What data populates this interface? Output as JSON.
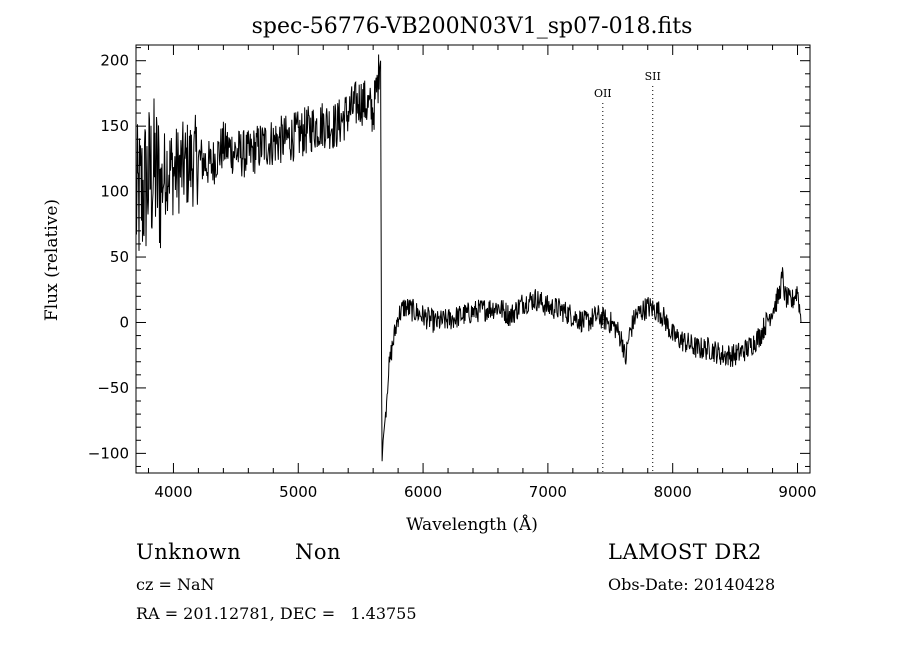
{
  "chart_data": {
    "type": "line",
    "title": "spec-56776-VB200N03V1_sp07-018.fits",
    "xlabel": "Wavelength (Å)",
    "ylabel": "Flux (relative)",
    "xlim": [
      3700,
      9100
    ],
    "ylim": [
      -115,
      212
    ],
    "xticks": [
      4000,
      5000,
      6000,
      7000,
      8000,
      9000
    ],
    "yticks": [
      -100,
      -50,
      0,
      50,
      100,
      150,
      200
    ],
    "lines": [
      {
        "label": "OII",
        "wavelength": 7440
      },
      {
        "label": "SII",
        "wavelength": 7840
      }
    ],
    "series": [
      {
        "x": [
          3700,
          3760,
          3800,
          3850,
          3900,
          3950,
          4000,
          4100,
          4200,
          4300,
          4400,
          4500,
          4600,
          4700,
          4800,
          4900,
          5000,
          5100,
          5200,
          5300,
          5400,
          5500,
          5560,
          5600,
          5640,
          5660,
          5670,
          5680,
          5700,
          5720,
          5750,
          5800,
          5850,
          5900,
          6000,
          6100,
          6200,
          6300,
          6400,
          6500,
          6600,
          6700,
          6800,
          6900,
          7000,
          7100,
          7200,
          7300,
          7400,
          7500,
          7550,
          7600,
          7620,
          7650,
          7700,
          7800,
          7900,
          7950,
          8000,
          8100,
          8200,
          8300,
          8400,
          8500,
          8600,
          8700,
          8750,
          8800,
          8850,
          8880,
          8900,
          8950,
          9000,
          9030
        ],
        "y": [
          90,
          100,
          110,
          115,
          105,
          120,
          115,
          120,
          125,
          120,
          135,
          130,
          128,
          135,
          138,
          140,
          143,
          148,
          152,
          150,
          160,
          170,
          165,
          160,
          185,
          200,
          -110,
          -90,
          -70,
          -40,
          -20,
          5,
          12,
          10,
          5,
          0,
          2,
          5,
          8,
          10,
          12,
          5,
          15,
          18,
          12,
          10,
          5,
          0,
          5,
          0,
          -5,
          -15,
          -30,
          -10,
          5,
          12,
          8,
          0,
          -10,
          -15,
          -20,
          -20,
          -25,
          -25,
          -20,
          -10,
          0,
          10,
          20,
          35,
          20,
          15,
          25,
          0
        ]
      }
    ]
  },
  "info": {
    "object_class": "Unknown",
    "object_subclass": "Non",
    "survey": "LAMOST DR2",
    "cz": "cz = NaN",
    "obs_date": "Obs-Date: 20140428",
    "coords": "RA = 201.12781, DEC =   1.43755"
  }
}
